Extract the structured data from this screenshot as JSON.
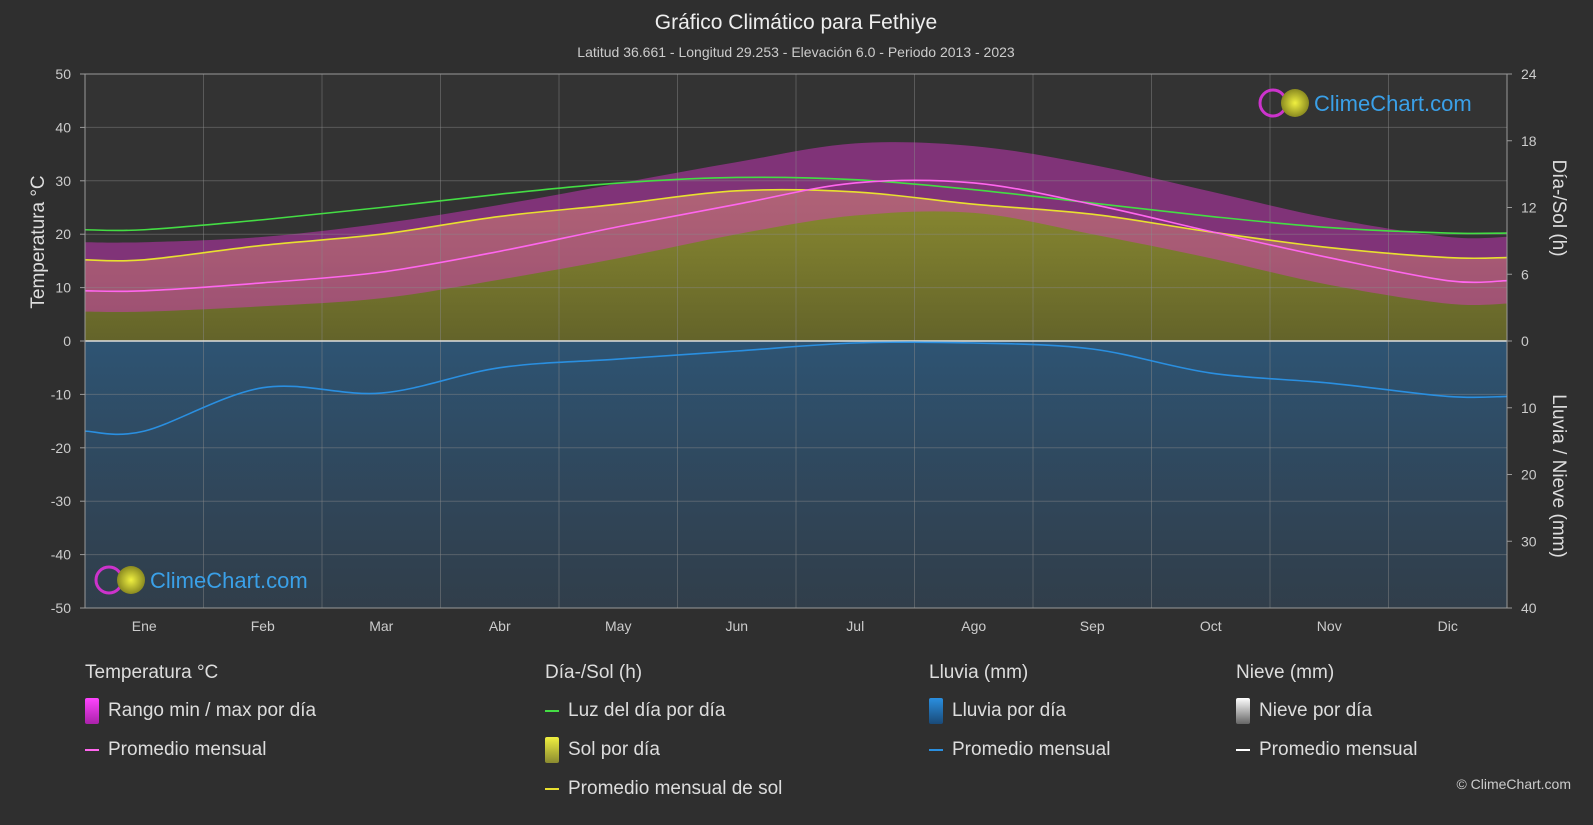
{
  "chart_data": {
    "type": "area",
    "title": "Gráfico Climático para Fethiye",
    "subtitle": "Latitud 36.661 - Longitud 29.253 - Elevación 6.0 - Periodo 2013 - 2023",
    "ylabel_left": "Temperatura °C",
    "ylabel_right_top": "Día-/Sol (h)",
    "ylabel_right_bottom": "Lluvia / Nieve (mm)",
    "categories": [
      "Ene",
      "Feb",
      "Mar",
      "Abr",
      "May",
      "Jun",
      "Jul",
      "Ago",
      "Sep",
      "Oct",
      "Nov",
      "Dic"
    ],
    "y_left_ticks": [
      "50",
      "40",
      "30",
      "20",
      "10",
      "0",
      "-10",
      "-20",
      "-30",
      "-40",
      "-50"
    ],
    "y_right_top_ticks": [
      "24",
      "18",
      "12",
      "6",
      "0"
    ],
    "y_right_bottom_ticks": [
      "0",
      "10",
      "20",
      "30",
      "40"
    ],
    "ylim_temp": [
      -50,
      50
    ],
    "ylim_sun_hours": [
      0,
      24
    ],
    "ylim_rain_mm": [
      0,
      40
    ],
    "series": [
      {
        "name": "Luz del día por día",
        "unit": "h",
        "color": "#44dd44",
        "values": [
          10.0,
          10.9,
          12.0,
          13.2,
          14.2,
          14.7,
          14.5,
          13.6,
          12.4,
          11.2,
          10.2,
          9.7
        ]
      },
      {
        "name": "Promedio mensual de sol",
        "unit": "h",
        "color": "#e8e030",
        "values": [
          7.3,
          8.6,
          9.6,
          11.2,
          12.3,
          13.5,
          13.4,
          12.3,
          11.4,
          9.8,
          8.4,
          7.5
        ]
      },
      {
        "name": "Promedio mensual",
        "group": "Temperatura °C",
        "unit": "°C",
        "color": "#ff66ee",
        "values": [
          9.4,
          10.9,
          12.9,
          16.8,
          21.4,
          25.6,
          29.6,
          29.6,
          25.6,
          20.5,
          15.6,
          11.3
        ]
      },
      {
        "name": "Rango min / max por día",
        "unit": "°C",
        "color": "#dd22dd",
        "min": [
          5.5,
          6.5,
          8.0,
          11.5,
          15.5,
          20.0,
          23.5,
          24.0,
          20.0,
          15.5,
          10.5,
          7.0
        ],
        "max": [
          18.5,
          19.5,
          22.0,
          25.5,
          29.5,
          33.5,
          37.0,
          36.5,
          33.0,
          28.0,
          23.0,
          19.5
        ]
      },
      {
        "name": "Promedio mensual",
        "group": "Lluvia (mm)",
        "unit": "mm",
        "color": "#2a8fe0",
        "values": [
          13.5,
          7.0,
          7.8,
          4.0,
          2.7,
          1.5,
          0.3,
          0.3,
          1.2,
          4.8,
          6.3,
          8.3
        ]
      }
    ],
    "legend": {
      "groups": [
        {
          "title": "Temperatura °C",
          "items": [
            "Rango min / max por día",
            "Promedio mensual"
          ]
        },
        {
          "title": "Día-/Sol (h)",
          "items": [
            "Luz del día por día",
            "Sol por día",
            "Promedio mensual de sol"
          ]
        },
        {
          "title": "Lluvia (mm)",
          "items": [
            "Lluvia por día",
            "Promedio mensual"
          ]
        },
        {
          "title": "Nieve (mm)",
          "items": [
            "Nieve por día",
            "Promedio mensual"
          ]
        }
      ]
    },
    "grid": true,
    "watermark": "ClimeChart.com",
    "copyright": "© ClimeChart.com"
  }
}
